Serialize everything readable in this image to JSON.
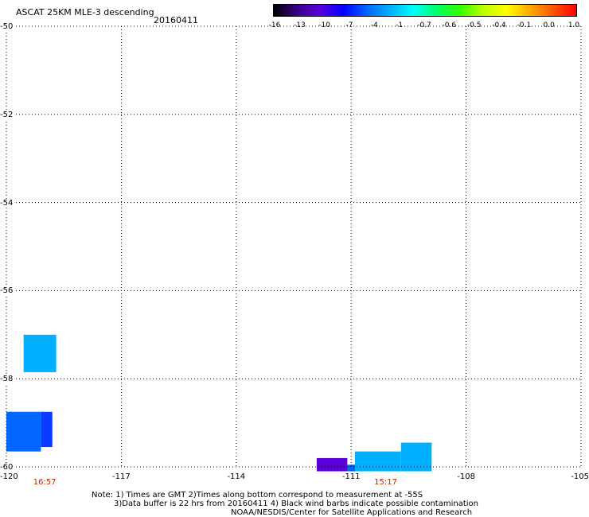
{
  "header": {
    "title": "ASCAT 25KM MLE-3 descending",
    "date": "20160411"
  },
  "colorbar": {
    "labels": [
      "-16",
      "-13",
      "-10",
      "-7",
      "-4",
      "-1",
      "-0.7",
      "-0.6",
      "-0.5",
      "-0.4",
      "-0.1",
      "0.0",
      "1.0"
    ],
    "colors": [
      "#000000",
      "#3a0088",
      "#5a00dd",
      "#0000ff",
      "#0066ff",
      "#00b0ff",
      "#00ffff",
      "#00ff66",
      "#33ff00",
      "#bbff00",
      "#ffff00",
      "#ffaa00",
      "#ff5500",
      "#ff0000"
    ]
  },
  "axes": {
    "lat_labels": [
      "-50",
      "-52",
      "-54",
      "-56",
      "-58",
      "-60"
    ],
    "lon_labels": [
      "-120",
      "-117",
      "-114",
      "-111",
      "-108",
      "-105"
    ],
    "grid": "dotted"
  },
  "times": [
    {
      "label": "16:57",
      "lon": -119.0
    },
    {
      "label": "15:17",
      "lon": -110.1
    }
  ],
  "data_cells": [
    {
      "lon0": -119.55,
      "lon1": -118.7,
      "lat0": -57.0,
      "lat1": -57.85,
      "color": "#00b0ff"
    },
    {
      "lon0": -120.0,
      "lon1": -119.1,
      "lat0": -58.75,
      "lat1": -59.65,
      "color": "#0066ff"
    },
    {
      "lon0": -119.1,
      "lon1": -118.8,
      "lat0": -58.75,
      "lat1": -59.55,
      "color": "#0a3cff"
    },
    {
      "lon0": -111.9,
      "lon1": -111.1,
      "lat0": -59.8,
      "lat1": -60.1,
      "color": "#5a00dd"
    },
    {
      "lon0": -111.1,
      "lon1": -110.9,
      "lat0": -59.95,
      "lat1": -60.1,
      "color": "#0066ff"
    },
    {
      "lon0": -110.9,
      "lon1": -109.7,
      "lat0": -59.65,
      "lat1": -60.1,
      "color": "#00b0ff"
    },
    {
      "lon0": -109.7,
      "lon1": -108.9,
      "lat0": -59.45,
      "lat1": -60.1,
      "color": "#00b0ff"
    }
  ],
  "notes": {
    "line1": "Note: 1) Times are GMT 2)Times along bottom correspond to measurement at -55S",
    "line2": "3)Data buffer is 22 hrs from 20160411 4) Black wind barbs indicate possible contamination",
    "line3": "NOAA/NESDIS/Center for Satellite Applications and Research"
  }
}
